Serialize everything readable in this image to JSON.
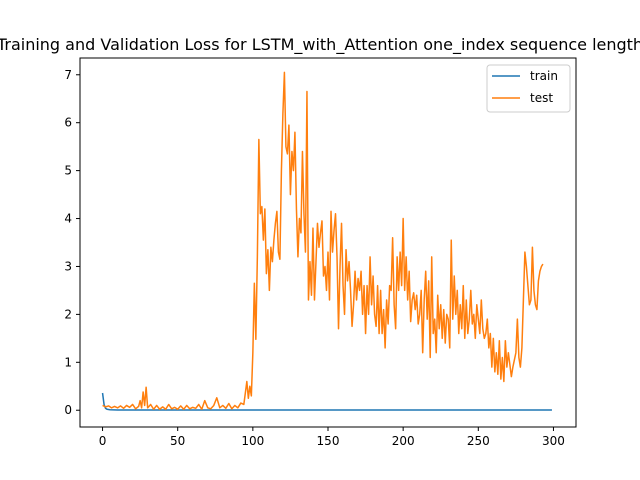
{
  "chart_data": {
    "type": "line",
    "title": "Training and Validation Loss for LSTM_with_Attention one_index sequence length",
    "xlabel": "",
    "ylabel": "",
    "xlim": [
      -15,
      315
    ],
    "ylim": [
      -0.35,
      7.35
    ],
    "xticks": [
      0,
      50,
      100,
      150,
      200,
      250,
      300
    ],
    "yticks": [
      0,
      1,
      2,
      3,
      4,
      5,
      6,
      7
    ],
    "grid": false,
    "legend": "top-right",
    "series": [
      {
        "name": "train",
        "color": "#1f77b4",
        "points": [
          [
            0,
            0.36
          ],
          [
            1,
            0.12
          ],
          [
            2,
            0.04
          ],
          [
            3,
            0.02
          ],
          [
            5,
            0.01
          ],
          [
            10,
            0.005
          ],
          [
            299,
            0.005
          ]
        ]
      },
      {
        "name": "test",
        "color": "#ff7f0e",
        "points": [
          [
            0,
            0.1
          ],
          [
            2,
            0.07
          ],
          [
            4,
            0.09
          ],
          [
            6,
            0.05
          ],
          [
            8,
            0.08
          ],
          [
            10,
            0.05
          ],
          [
            12,
            0.09
          ],
          [
            14,
            0.04
          ],
          [
            16,
            0.1
          ],
          [
            18,
            0.06
          ],
          [
            20,
            0.12
          ],
          [
            22,
            0.03
          ],
          [
            24,
            0.08
          ],
          [
            25,
            0.2
          ],
          [
            26,
            0.05
          ],
          [
            27,
            0.38
          ],
          [
            28,
            0.1
          ],
          [
            29,
            0.48
          ],
          [
            30,
            0.05
          ],
          [
            32,
            0.12
          ],
          [
            34,
            0.02
          ],
          [
            36,
            0.1
          ],
          [
            38,
            0.02
          ],
          [
            40,
            0.07
          ],
          [
            42,
            0.02
          ],
          [
            44,
            0.12
          ],
          [
            46,
            0.03
          ],
          [
            48,
            0.06
          ],
          [
            50,
            0.02
          ],
          [
            52,
            0.09
          ],
          [
            54,
            0.02
          ],
          [
            56,
            0.1
          ],
          [
            58,
            0.03
          ],
          [
            60,
            0.06
          ],
          [
            62,
            0.04
          ],
          [
            64,
            0.12
          ],
          [
            66,
            0.02
          ],
          [
            68,
            0.2
          ],
          [
            70,
            0.05
          ],
          [
            72,
            0.03
          ],
          [
            74,
            0.1
          ],
          [
            76,
            0.26
          ],
          [
            78,
            0.05
          ],
          [
            80,
            0.1
          ],
          [
            82,
            0.04
          ],
          [
            84,
            0.14
          ],
          [
            86,
            0.03
          ],
          [
            88,
            0.1
          ],
          [
            90,
            0.05
          ],
          [
            92,
            0.15
          ],
          [
            94,
            0.12
          ],
          [
            96,
            0.6
          ],
          [
            97,
            0.25
          ],
          [
            98,
            0.5
          ],
          [
            99,
            0.3
          ],
          [
            100,
            1.2
          ],
          [
            101,
            2.65
          ],
          [
            102,
            1.48
          ],
          [
            103,
            3.2
          ],
          [
            104,
            5.65
          ],
          [
            105,
            4.1
          ],
          [
            106,
            4.25
          ],
          [
            107,
            3.55
          ],
          [
            108,
            4.2
          ],
          [
            109,
            2.85
          ],
          [
            110,
            3.35
          ],
          [
            111,
            2.5
          ],
          [
            112,
            3.4
          ],
          [
            113,
            3.1
          ],
          [
            114,
            3.55
          ],
          [
            115,
            3.9
          ],
          [
            116,
            4.15
          ],
          [
            117,
            3.3
          ],
          [
            118,
            3.15
          ],
          [
            119,
            5.0
          ],
          [
            120,
            6.2
          ],
          [
            121,
            7.05
          ],
          [
            122,
            5.5
          ],
          [
            123,
            5.35
          ],
          [
            124,
            5.95
          ],
          [
            125,
            4.5
          ],
          [
            126,
            5.4
          ],
          [
            127,
            5.0
          ],
          [
            128,
            5.8
          ],
          [
            129,
            4.2
          ],
          [
            130,
            3.2
          ],
          [
            131,
            4.0
          ],
          [
            132,
            3.7
          ],
          [
            133,
            5.4
          ],
          [
            134,
            4.1
          ],
          [
            135,
            3.3
          ],
          [
            136,
            6.65
          ],
          [
            137,
            2.3
          ],
          [
            138,
            3.1
          ],
          [
            139,
            2.4
          ],
          [
            140,
            3.8
          ],
          [
            141,
            2.3
          ],
          [
            142,
            3.1
          ],
          [
            143,
            3.9
          ],
          [
            144,
            3.4
          ],
          [
            145,
            3.7
          ],
          [
            146,
            3.95
          ],
          [
            147,
            2.8
          ],
          [
            148,
            3.0
          ],
          [
            149,
            2.5
          ],
          [
            150,
            3.3
          ],
          [
            151,
            2.3
          ],
          [
            152,
            4.15
          ],
          [
            153,
            3.3
          ],
          [
            154,
            3.75
          ],
          [
            155,
            4.1
          ],
          [
            156,
            3.2
          ],
          [
            157,
            1.7
          ],
          [
            158,
            3.0
          ],
          [
            159,
            3.9
          ],
          [
            160,
            2.6
          ],
          [
            161,
            2.0
          ],
          [
            162,
            3.35
          ],
          [
            163,
            2.7
          ],
          [
            164,
            3.1
          ],
          [
            165,
            2.5
          ],
          [
            166,
            1.75
          ],
          [
            167,
            2.2
          ],
          [
            168,
            2.9
          ],
          [
            169,
            2.3
          ],
          [
            170,
            2.75
          ],
          [
            171,
            2.5
          ],
          [
            172,
            2.9
          ],
          [
            173,
            2.0
          ],
          [
            174,
            2.6
          ],
          [
            175,
            1.6
          ],
          [
            176,
            2.6
          ],
          [
            177,
            2.0
          ],
          [
            178,
            3.2
          ],
          [
            179,
            2.2
          ],
          [
            180,
            2.8
          ],
          [
            181,
            2.0
          ],
          [
            182,
            1.75
          ],
          [
            183,
            2.6
          ],
          [
            184,
            1.6
          ],
          [
            185,
            2.5
          ],
          [
            186,
            1.6
          ],
          [
            187,
            2.1
          ],
          [
            188,
            1.3
          ],
          [
            189,
            2.3
          ],
          [
            190,
            1.8
          ],
          [
            191,
            2.6
          ],
          [
            192,
            2.5
          ],
          [
            193,
            3.6
          ],
          [
            194,
            2.2
          ],
          [
            195,
            1.7
          ],
          [
            196,
            3.2
          ],
          [
            197,
            2.5
          ],
          [
            198,
            3.3
          ],
          [
            199,
            2.6
          ],
          [
            200,
            4.0
          ],
          [
            201,
            2.5
          ],
          [
            202,
            3.2
          ],
          [
            203,
            2.3
          ],
          [
            204,
            2.9
          ],
          [
            205,
            1.85
          ],
          [
            206,
            2.3
          ],
          [
            207,
            2.45
          ],
          [
            208,
            2.1
          ],
          [
            209,
            2.4
          ],
          [
            210,
            1.8
          ],
          [
            211,
            2.0
          ],
          [
            212,
            2.5
          ],
          [
            213,
            1.2
          ],
          [
            214,
            2.3
          ],
          [
            215,
            2.9
          ],
          [
            216,
            1.9
          ],
          [
            217,
            2.7
          ],
          [
            218,
            1.1
          ],
          [
            219,
            3.2
          ],
          [
            220,
            1.6
          ],
          [
            221,
            1.9
          ],
          [
            222,
            1.2
          ],
          [
            223,
            2.4
          ],
          [
            224,
            1.7
          ],
          [
            225,
            2.2
          ],
          [
            226,
            1.5
          ],
          [
            227,
            2.1
          ],
          [
            228,
            1.4
          ],
          [
            229,
            2.0
          ],
          [
            230,
            1.9
          ],
          [
            231,
            1.3
          ],
          [
            232,
            3.55
          ],
          [
            233,
            1.9
          ],
          [
            234,
            2.8
          ],
          [
            235,
            2.0
          ],
          [
            236,
            2.5
          ],
          [
            237,
            1.6
          ],
          [
            238,
            2.2
          ],
          [
            239,
            1.7
          ],
          [
            240,
            2.6
          ],
          [
            241,
            1.5
          ],
          [
            242,
            2.3
          ],
          [
            243,
            1.6
          ],
          [
            244,
            1.9
          ],
          [
            245,
            2.5
          ],
          [
            246,
            1.8
          ],
          [
            247,
            2.0
          ],
          [
            248,
            1.5
          ],
          [
            249,
            2.2
          ],
          [
            250,
            1.9
          ],
          [
            251,
            1.6
          ],
          [
            252,
            2.3
          ],
          [
            253,
            1.7
          ],
          [
            254,
            1.5
          ],
          [
            255,
            1.6
          ],
          [
            256,
            1.9
          ],
          [
            257,
            1.3
          ],
          [
            258,
            1.6
          ],
          [
            259,
            0.9
          ],
          [
            260,
            1.5
          ],
          [
            261,
            0.8
          ],
          [
            262,
            1.2
          ],
          [
            263,
            0.75
          ],
          [
            264,
            1.45
          ],
          [
            265,
            0.65
          ],
          [
            266,
            1.1
          ],
          [
            267,
            0.6
          ],
          [
            268,
            1.45
          ],
          [
            269,
            0.9
          ],
          [
            270,
            1.2
          ],
          [
            271,
            0.95
          ],
          [
            272,
            0.7
          ],
          [
            273,
            0.9
          ],
          [
            274,
            1.05
          ],
          [
            275,
            1.2
          ],
          [
            276,
            1.9
          ],
          [
            277,
            1.1
          ],
          [
            278,
            0.9
          ],
          [
            279,
            1.3
          ],
          [
            280,
            2.3
          ],
          [
            281,
            3.3
          ],
          [
            282,
            3.0
          ],
          [
            283,
            2.6
          ],
          [
            284,
            2.2
          ],
          [
            285,
            2.3
          ],
          [
            286,
            3.4
          ],
          [
            287,
            2.5
          ],
          [
            288,
            2.2
          ],
          [
            289,
            2.1
          ],
          [
            290,
            2.7
          ],
          [
            291,
            2.9
          ],
          [
            292,
            3.0
          ],
          [
            293,
            3.05
          ]
        ]
      }
    ]
  }
}
